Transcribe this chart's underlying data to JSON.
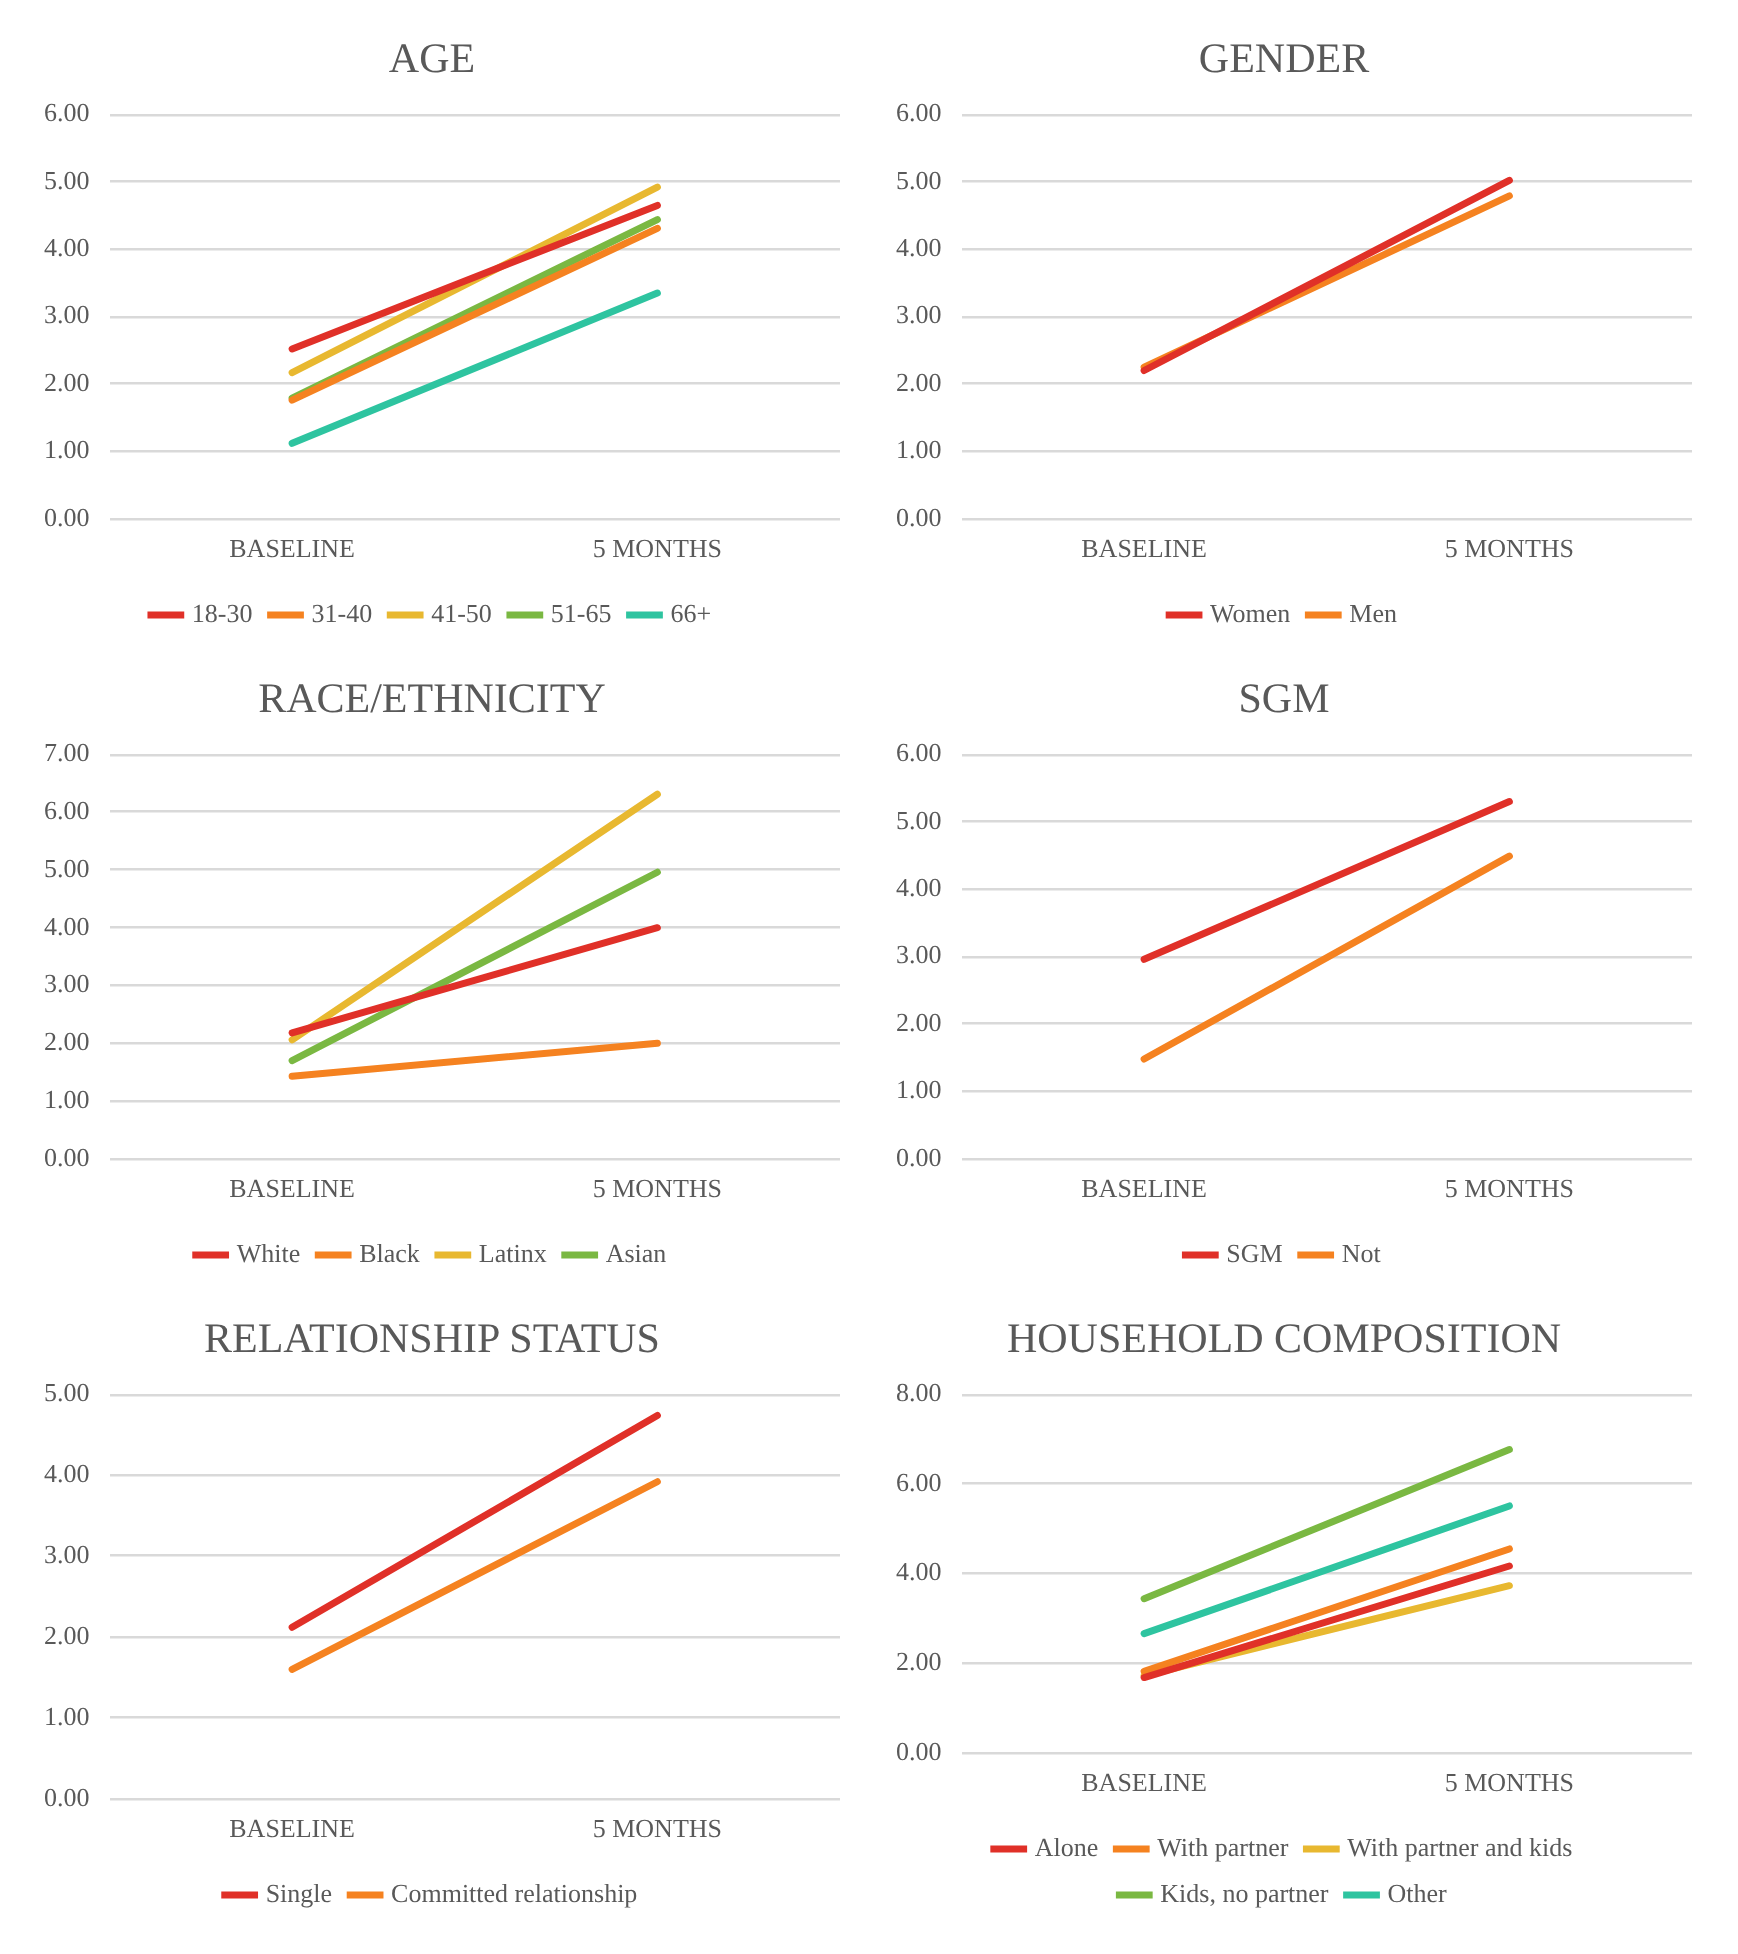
{
  "chart_data": [
    {
      "type": "line",
      "title": "AGE",
      "categories": [
        "BASELINE",
        "5 MONTHS"
      ],
      "ylim": [
        0,
        6
      ],
      "yticks": [
        {
          "value": 0,
          "label": "0.00"
        },
        {
          "value": 1,
          "label": "1.00"
        },
        {
          "value": 2,
          "label": "2.00"
        },
        {
          "value": 3,
          "label": "3.00"
        },
        {
          "value": 4,
          "label": "4.00"
        },
        {
          "value": 5,
          "label": "5.00"
        },
        {
          "value": 6,
          "label": "6.00"
        }
      ],
      "grid": "y",
      "legend": "bottom",
      "series": [
        {
          "name": "18-30",
          "color": "#e03028",
          "values": [
            2.52,
            4.65
          ]
        },
        {
          "name": "31-40",
          "color": "#f58220",
          "values": [
            1.76,
            4.31
          ]
        },
        {
          "name": "41-50",
          "color": "#e8b830",
          "values": [
            2.17,
            4.92
          ]
        },
        {
          "name": "51-65",
          "color": "#7ab842",
          "values": [
            1.79,
            4.44
          ]
        },
        {
          "name": "66+",
          "color": "#2ec4a0",
          "values": [
            1.12,
            3.35
          ]
        }
      ]
    },
    {
      "type": "line",
      "title": "GENDER",
      "categories": [
        "BASELINE",
        "5 MONTHS"
      ],
      "ylim": [
        0,
        6
      ],
      "yticks": [
        {
          "value": 0,
          "label": "0.00"
        },
        {
          "value": 1,
          "label": "1.00"
        },
        {
          "value": 2,
          "label": "2.00"
        },
        {
          "value": 3,
          "label": "3.00"
        },
        {
          "value": 4,
          "label": "4.00"
        },
        {
          "value": 5,
          "label": "5.00"
        },
        {
          "value": 6,
          "label": "6.00"
        }
      ],
      "grid": "y",
      "legend": "bottom",
      "series": [
        {
          "name": "Women",
          "color": "#e03028",
          "values": [
            2.2,
            5.02
          ]
        },
        {
          "name": "Men",
          "color": "#f58220",
          "values": [
            2.25,
            4.79
          ]
        }
      ]
    },
    {
      "type": "line",
      "title": "RACE/ETHNICITY",
      "categories": [
        "BASELINE",
        "5 MONTHS"
      ],
      "ylim": [
        0,
        7
      ],
      "yticks": [
        {
          "value": 0,
          "label": "0.00"
        },
        {
          "value": 1,
          "label": "1.00"
        },
        {
          "value": 2,
          "label": "2.00"
        },
        {
          "value": 3,
          "label": "3.00"
        },
        {
          "value": 4,
          "label": "4.00"
        },
        {
          "value": 5,
          "label": "5.00"
        },
        {
          "value": 6,
          "label": "6.00"
        },
        {
          "value": 7,
          "label": "7.00"
        }
      ],
      "grid": "y",
      "legend": "bottom",
      "series": [
        {
          "name": "White",
          "color": "#e03028",
          "values": [
            2.18,
            4.0
          ]
        },
        {
          "name": "Black",
          "color": "#f58220",
          "values": [
            1.43,
            2.0
          ]
        },
        {
          "name": "Latinx",
          "color": "#e8b830",
          "values": [
            2.06,
            6.31
          ]
        },
        {
          "name": "Asian",
          "color": "#7ab842",
          "values": [
            1.7,
            4.96
          ]
        }
      ]
    },
    {
      "type": "line",
      "title": "SGM",
      "categories": [
        "BASELINE",
        "5 MONTHS"
      ],
      "ylim": [
        0,
        6
      ],
      "yticks": [
        {
          "value": 0,
          "label": "0.00"
        },
        {
          "value": 1,
          "label": "1.00"
        },
        {
          "value": 2,
          "label": "2.00"
        },
        {
          "value": 3,
          "label": "3.00"
        },
        {
          "value": 4,
          "label": "4.00"
        },
        {
          "value": 5,
          "label": "5.00"
        },
        {
          "value": 6,
          "label": "6.00"
        }
      ],
      "grid": "y",
      "legend": "bottom",
      "series": [
        {
          "name": "SGM",
          "color": "#e03028",
          "values": [
            2.96,
            5.3
          ]
        },
        {
          "name": "Not",
          "color": "#f58220",
          "values": [
            1.48,
            4.49
          ]
        }
      ]
    },
    {
      "type": "line",
      "title": "RELATIONSHIP STATUS",
      "categories": [
        "BASELINE",
        "5 MONTHS"
      ],
      "ylim": [
        0,
        5
      ],
      "yticks": [
        {
          "value": 0,
          "label": "0.00"
        },
        {
          "value": 1,
          "label": "1.00"
        },
        {
          "value": 2,
          "label": "2.00"
        },
        {
          "value": 3,
          "label": "3.00"
        },
        {
          "value": 4,
          "label": "4.00"
        },
        {
          "value": 5,
          "label": "5.00"
        }
      ],
      "grid": "y",
      "legend": "bottom",
      "series": [
        {
          "name": "Single",
          "color": "#e03028",
          "values": [
            2.12,
            4.74
          ]
        },
        {
          "name": "Committed relationship",
          "color": "#f58220",
          "values": [
            1.6,
            3.92
          ]
        }
      ]
    },
    {
      "type": "line",
      "title": "HOUSEHOLD COMPOSITION",
      "categories": [
        "BASELINE",
        "5 MONTHS"
      ],
      "ylim": [
        0,
        8
      ],
      "yticks": [
        {
          "value": 0,
          "label": "0.00"
        },
        {
          "value": 2,
          "label": "2.00"
        },
        {
          "value": 4,
          "label": "4.00"
        },
        {
          "value": 6,
          "label": "6.00"
        },
        {
          "value": 8,
          "label": "8.00"
        }
      ],
      "grid": "y",
      "legend": "bottom",
      "series": [
        {
          "name": "Alone",
          "color": "#e03028",
          "values": [
            1.68,
            4.17
          ]
        },
        {
          "name": "With partner",
          "color": "#f58220",
          "values": [
            1.82,
            4.55
          ]
        },
        {
          "name": "With partner and kids",
          "color": "#e8b830",
          "values": [
            1.72,
            3.73
          ]
        },
        {
          "name": "Kids, no partner",
          "color": "#7ab842",
          "values": [
            3.44,
            6.77
          ]
        },
        {
          "name": "Other",
          "color": "#2ec4a0",
          "values": [
            2.66,
            5.51
          ]
        }
      ]
    }
  ]
}
